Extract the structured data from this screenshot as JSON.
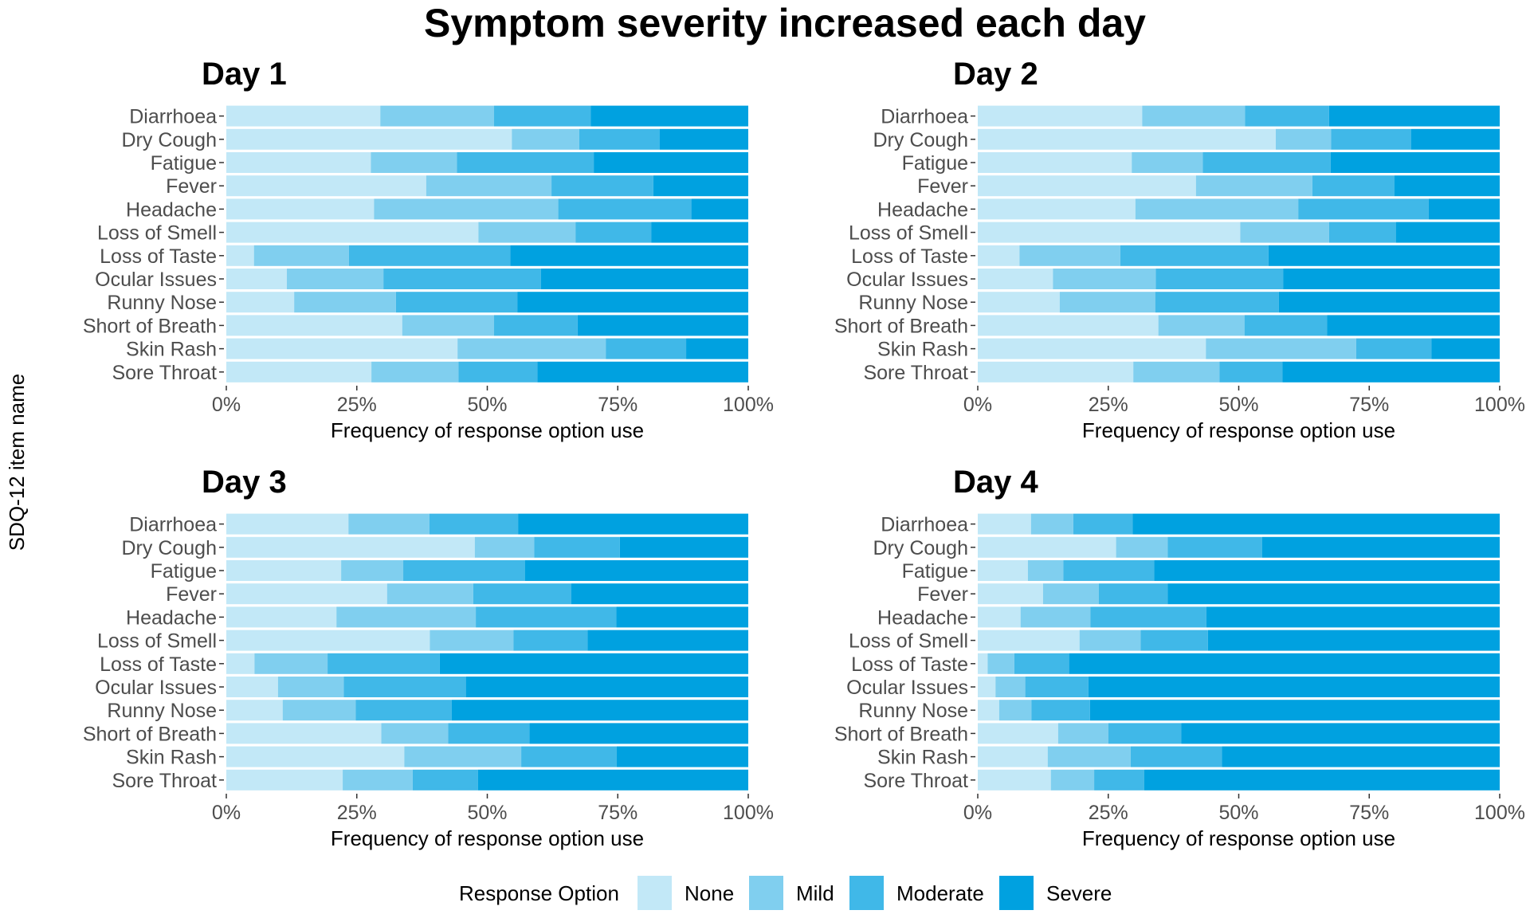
{
  "title": "Symptom severity increased each day",
  "y_axis_title": "SDQ-12 item name",
  "legend": {
    "title": "Response Option",
    "entries": [
      {
        "label": "None",
        "color": "#c2e8f7"
      },
      {
        "label": "Mild",
        "color": "#80cfef"
      },
      {
        "label": "Moderate",
        "color": "#40b8e8"
      },
      {
        "label": "Severe",
        "color": "#00a1e0"
      }
    ]
  },
  "chart_data": [
    {
      "type": "bar",
      "orientation": "horizontal-stacked-percent",
      "title": "Day 1",
      "xlabel": "Frequency of response option use",
      "x_ticks": [
        "0%",
        "25%",
        "50%",
        "75%",
        "100%"
      ],
      "xlim": [
        0,
        100
      ],
      "categories": [
        "Diarrhoea",
        "Dry Cough",
        "Fatigue",
        "Fever",
        "Headache",
        "Loss of Smell",
        "Loss of Taste",
        "Ocular Issues",
        "Runny Nose",
        "Short of Breath",
        "Skin Rash",
        "Sore Throat"
      ],
      "series": [
        {
          "name": "None",
          "values": [
            29.5,
            54.7,
            27.7,
            38.3,
            28.3,
            48.3,
            5.3,
            11.6,
            13.0,
            33.7,
            44.3,
            27.8
          ]
        },
        {
          "name": "Mild",
          "values": [
            21.8,
            12.9,
            16.5,
            24.0,
            35.3,
            18.6,
            18.2,
            18.5,
            19.5,
            17.6,
            28.4,
            16.7
          ]
        },
        {
          "name": "Moderate",
          "values": [
            18.5,
            15.4,
            26.2,
            19.5,
            25.5,
            14.5,
            30.9,
            30.2,
            23.3,
            16.0,
            15.4,
            15.1
          ]
        },
        {
          "name": "Severe",
          "values": [
            30.2,
            17.0,
            29.6,
            18.2,
            10.9,
            18.6,
            45.6,
            39.7,
            44.2,
            32.7,
            11.9,
            40.4
          ]
        }
      ]
    },
    {
      "type": "bar",
      "orientation": "horizontal-stacked-percent",
      "title": "Day 2",
      "xlabel": "Frequency of response option use",
      "x_ticks": [
        "0%",
        "25%",
        "50%",
        "75%",
        "100%"
      ],
      "xlim": [
        0,
        100
      ],
      "categories": [
        "Diarrhoea",
        "Dry Cough",
        "Fatigue",
        "Fever",
        "Headache",
        "Loss of Smell",
        "Loss of Taste",
        "Ocular Issues",
        "Runny Nose",
        "Short of Breath",
        "Skin Rash",
        "Sore Throat"
      ],
      "series": [
        {
          "name": "None",
          "values": [
            31.5,
            57.1,
            29.5,
            41.8,
            30.2,
            50.3,
            8.0,
            14.4,
            15.7,
            34.6,
            43.7,
            29.8
          ]
        },
        {
          "name": "Mild",
          "values": [
            19.7,
            10.6,
            13.6,
            22.3,
            31.2,
            17.0,
            19.3,
            19.7,
            18.3,
            16.5,
            28.8,
            16.5
          ]
        },
        {
          "name": "Moderate",
          "values": [
            16.1,
            15.3,
            24.5,
            15.7,
            25.0,
            12.8,
            28.4,
            24.4,
            23.7,
            15.8,
            14.4,
            12.1
          ]
        },
        {
          "name": "Severe",
          "values": [
            32.7,
            17.0,
            32.4,
            20.2,
            13.6,
            19.9,
            44.3,
            41.5,
            42.3,
            33.1,
            13.1,
            41.6
          ]
        }
      ]
    },
    {
      "type": "bar",
      "orientation": "horizontal-stacked-percent",
      "title": "Day 3",
      "xlabel": "Frequency of response option use",
      "x_ticks": [
        "0%",
        "25%",
        "50%",
        "75%",
        "100%"
      ],
      "xlim": [
        0,
        100
      ],
      "categories": [
        "Diarrhoea",
        "Dry Cough",
        "Fatigue",
        "Fever",
        "Headache",
        "Loss of Smell",
        "Loss of Taste",
        "Ocular Issues",
        "Runny Nose",
        "Short of Breath",
        "Skin Rash",
        "Sore Throat"
      ],
      "series": [
        {
          "name": "None",
          "values": [
            23.4,
            47.6,
            22.0,
            30.8,
            21.1,
            39.0,
            5.4,
            9.9,
            10.8,
            29.7,
            34.1,
            22.3
          ]
        },
        {
          "name": "Mild",
          "values": [
            15.5,
            11.4,
            11.9,
            16.5,
            26.7,
            16.0,
            14.0,
            12.6,
            14.0,
            12.8,
            22.4,
            13.4
          ]
        },
        {
          "name": "Moderate",
          "values": [
            17.0,
            16.4,
            23.3,
            18.8,
            26.9,
            14.2,
            21.5,
            23.4,
            18.4,
            15.6,
            18.3,
            12.5
          ]
        },
        {
          "name": "Severe",
          "values": [
            44.1,
            24.6,
            42.8,
            33.9,
            25.3,
            30.8,
            59.1,
            54.1,
            56.8,
            41.9,
            25.2,
            51.8
          ]
        }
      ]
    },
    {
      "type": "bar",
      "orientation": "horizontal-stacked-percent",
      "title": "Day 4",
      "xlabel": "Frequency of response option use",
      "x_ticks": [
        "0%",
        "25%",
        "50%",
        "75%",
        "100%"
      ],
      "xlim": [
        0,
        100
      ],
      "categories": [
        "Diarrhoea",
        "Dry Cough",
        "Fatigue",
        "Fever",
        "Headache",
        "Loss of Smell",
        "Loss of Taste",
        "Ocular Issues",
        "Runny Nose",
        "Short of Breath",
        "Skin Rash",
        "Sore Throat"
      ],
      "series": [
        {
          "name": "None",
          "values": [
            10.2,
            26.5,
            9.6,
            12.5,
            8.2,
            19.5,
            1.9,
            3.4,
            4.1,
            15.4,
            13.4,
            14.0
          ]
        },
        {
          "name": "Mild",
          "values": [
            8.1,
            9.9,
            6.8,
            10.7,
            13.4,
            11.7,
            5.1,
            5.7,
            6.2,
            9.6,
            15.9,
            8.3
          ]
        },
        {
          "name": "Moderate",
          "values": [
            11.4,
            18.1,
            17.4,
            13.2,
            22.2,
            12.9,
            10.5,
            12.1,
            11.2,
            14.0,
            17.5,
            9.6
          ]
        },
        {
          "name": "Severe",
          "values": [
            70.3,
            45.5,
            66.2,
            63.6,
            56.2,
            55.9,
            82.5,
            78.8,
            78.5,
            61.0,
            53.2,
            68.1
          ]
        }
      ]
    }
  ]
}
